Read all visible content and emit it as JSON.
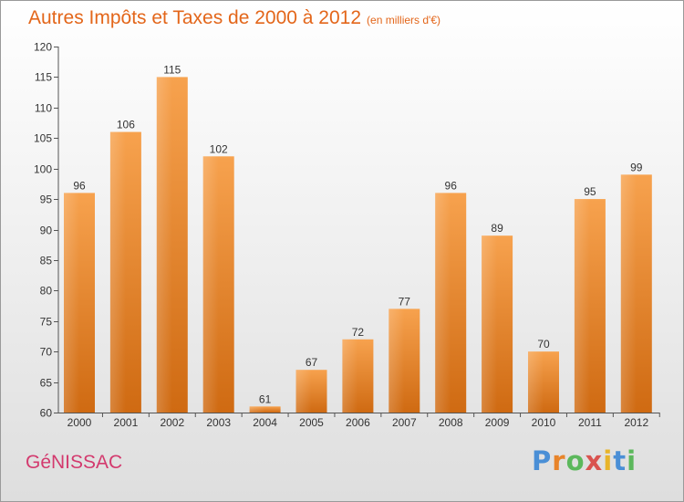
{
  "title": "Autres Impôts et Taxes de 2000 à 2012",
  "unit": "(en milliers d'€)",
  "commune": "GéNISSAC",
  "logo": {
    "letters": [
      "P",
      "r",
      "o",
      "x",
      "i",
      "t",
      "i"
    ],
    "colors": [
      "#4a8fd6",
      "#e8842a",
      "#5cb85c",
      "#d9534f",
      "#e8b42a",
      "#4a8fd6",
      "#5cb85c"
    ]
  },
  "colors": {
    "bar_top": "#f7a24e",
    "bar_bottom": "#cf6a12",
    "axis": "#555555",
    "grid": "#c8c8c8"
  },
  "chart_data": {
    "type": "bar",
    "title": "Autres Impôts et Taxes de 2000 à 2012",
    "categories": [
      "2000",
      "2001",
      "2002",
      "2003",
      "2004",
      "2005",
      "2006",
      "2007",
      "2008",
      "2009",
      "2010",
      "2011",
      "2012"
    ],
    "values": [
      96,
      106,
      115,
      102,
      61,
      67,
      72,
      77,
      96,
      89,
      70,
      95,
      99
    ],
    "ylim": [
      60,
      120
    ],
    "yticks": [
      60,
      65,
      70,
      75,
      80,
      85,
      90,
      95,
      100,
      105,
      110,
      115,
      120
    ],
    "grid": false,
    "data_labels": true
  }
}
